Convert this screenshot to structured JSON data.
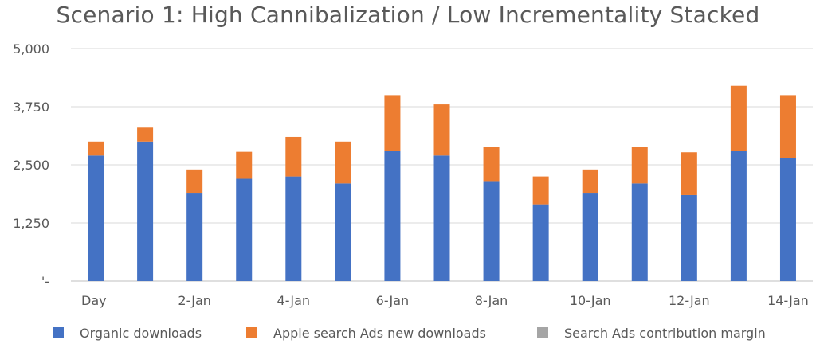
{
  "chart_data": {
    "type": "bar",
    "stacked": true,
    "title": "Scenario 1: High Cannibalization / Low Incrementality Stacked",
    "xlabel": "",
    "ylabel": "",
    "ylim": [
      0,
      5000
    ],
    "yticks": [
      0,
      1250,
      2500,
      3750,
      5000
    ],
    "ytick_labels": [
      "'-",
      "1,250",
      "2,500",
      "3,750",
      "5,000"
    ],
    "categories": [
      "Day",
      "1-Jan",
      "2-Jan",
      "3-Jan",
      "4-Jan",
      "5-Jan",
      "6-Jan",
      "7-Jan",
      "8-Jan",
      "9-Jan",
      "10-Jan",
      "11-Jan",
      "12-Jan",
      "13-Jan",
      "14-Jan"
    ],
    "shown_category_labels": [
      "Day",
      "",
      "2-Jan",
      "",
      "4-Jan",
      "",
      "6-Jan",
      "",
      "8-Jan",
      "",
      "10-Jan",
      "",
      "12-Jan",
      "",
      "14-Jan"
    ],
    "series": [
      {
        "name": "Organic downloads",
        "color": "#4472c4",
        "values": [
          2700,
          3000,
          1900,
          2200,
          2250,
          2100,
          2800,
          2700,
          2150,
          1650,
          1900,
          2100,
          1850,
          2800,
          2650
        ]
      },
      {
        "name": "Apple search Ads new downloads",
        "color": "#ed7d31",
        "values": [
          300,
          300,
          500,
          580,
          850,
          900,
          1200,
          1100,
          730,
          600,
          500,
          790,
          920,
          1400,
          1350
        ]
      },
      {
        "name": "Search Ads contribution margin",
        "color": "#a5a5a5",
        "values": [
          0,
          0,
          0,
          0,
          0,
          0,
          0,
          0,
          0,
          0,
          0,
          0,
          0,
          0,
          0
        ]
      }
    ],
    "grid": true,
    "legend_position": "bottom"
  }
}
